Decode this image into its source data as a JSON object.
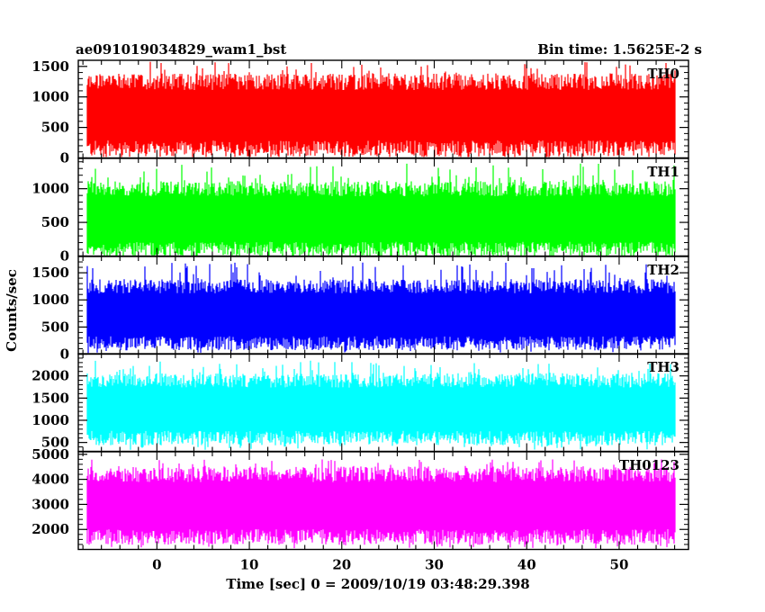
{
  "header": {
    "title": "ae091019034829_wam1_bst",
    "bin_time": "Bin time: 1.5625E-2 s"
  },
  "chart_data": {
    "type": "line",
    "xlabel": "Time [sec] 0 = 2009/10/19 03:48:29.398",
    "ylabel": "Counts/sec",
    "xlim": [
      -8.5,
      57.5
    ],
    "x_range_of_data": [
      -7.5,
      56.0
    ],
    "x_ticks": [
      0,
      10,
      20,
      30,
      40,
      50
    ],
    "panels": [
      {
        "name": "TH0",
        "color": "#ff0000",
        "ylim": [
          0,
          1600
        ],
        "y_ticks": [
          0,
          500,
          1000,
          1500
        ],
        "typical_range": [
          150,
          1250
        ],
        "median": 650,
        "peak": 1580
      },
      {
        "name": "TH1",
        "color": "#00ff00",
        "ylim": [
          0,
          1450
        ],
        "y_ticks": [
          0,
          500,
          1000
        ],
        "typical_range": [
          100,
          1000
        ],
        "median": 500,
        "peak": 1380
      },
      {
        "name": "TH2",
        "color": "#0000ff",
        "ylim": [
          0,
          1800
        ],
        "y_ticks": [
          0,
          500,
          1000,
          1500
        ],
        "typical_range": [
          200,
          1250
        ],
        "median": 750,
        "peak": 1700
      },
      {
        "name": "TH3",
        "color": "#00ffff",
        "ylim": [
          300,
          2500
        ],
        "y_ticks": [
          500,
          1000,
          1500,
          2000
        ],
        "typical_range": [
          600,
          1900
        ],
        "median": 1200,
        "peak": 2350
      },
      {
        "name": "TH0123",
        "color": "#ff00ff",
        "ylim": [
          1200,
          5100
        ],
        "y_ticks": [
          2000,
          3000,
          4000,
          5000
        ],
        "typical_range": [
          1700,
          4200
        ],
        "median": 2900,
        "peak": 4800
      }
    ]
  }
}
